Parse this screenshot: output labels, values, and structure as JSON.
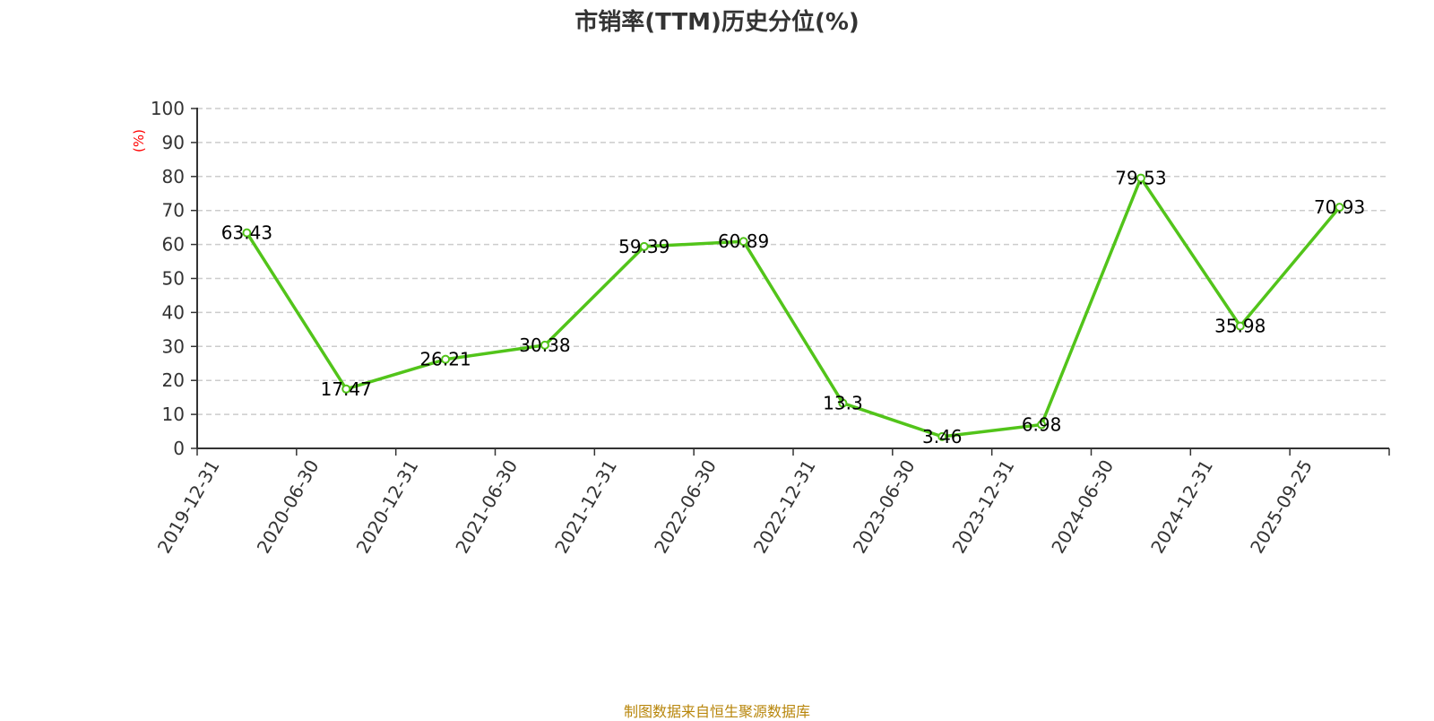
{
  "chart_data": {
    "type": "line",
    "title": "市销率(TTM)历史分位(%)",
    "ylabel": "(%)",
    "ylim": [
      0,
      100
    ],
    "yticks": [
      0,
      10,
      20,
      30,
      40,
      50,
      60,
      70,
      80,
      90,
      100
    ],
    "grid": true,
    "categories": [
      "2019-12-31",
      "2020-06-30",
      "2020-12-31",
      "2021-06-30",
      "2021-12-31",
      "2022-06-30",
      "2022-12-31",
      "2023-06-30",
      "2023-12-31",
      "2024-06-30",
      "2024-12-31",
      "2025-09-25"
    ],
    "series": [
      {
        "values": [
          63.43,
          17.47,
          26.21,
          30.38,
          59.39,
          60.89,
          13.3,
          3.46,
          6.98,
          79.53,
          35.98,
          70.93
        ],
        "labels": [
          "63.43",
          "17.47",
          "26.21",
          "30.38",
          "59.39",
          "60.89",
          "13.3",
          "3.46",
          "6.98",
          "79.53",
          "35.98",
          "70.93"
        ]
      }
    ],
    "source": "制图数据来自恒生聚源数据库"
  },
  "colors": {
    "line": "#52c41a",
    "axis": "#333333",
    "grid": "#cccccc",
    "title": "#333333",
    "ylabel": "#ff0000",
    "source": "#b8860b"
  }
}
